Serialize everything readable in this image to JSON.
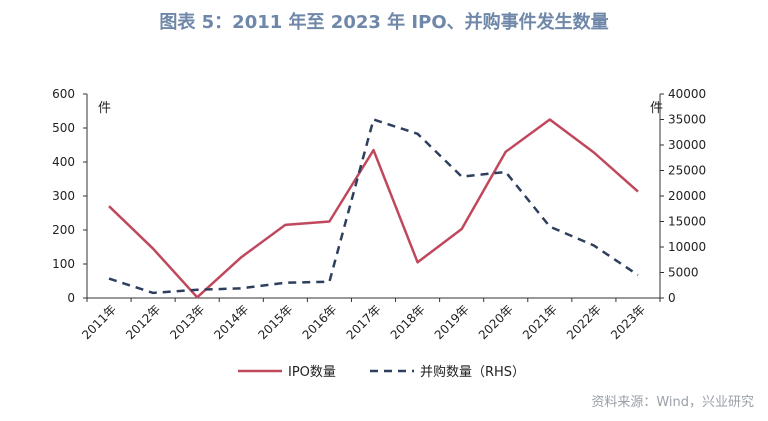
{
  "title": "图表 5：2011 年至 2023 年 IPO、并购事件发生数量",
  "source": "资料来源：Wind，兴业研究",
  "chart_data": {
    "type": "line",
    "categories": [
      "2011年",
      "2012年",
      "2013年",
      "2014年",
      "2015年",
      "2016年",
      "2017年",
      "2018年",
      "2019年",
      "2020年",
      "2021年",
      "2022年",
      "2023年"
    ],
    "y_left": {
      "unit": "件",
      "range": [
        0,
        600
      ],
      "ticks": [
        0,
        100,
        200,
        300,
        400,
        500,
        600
      ]
    },
    "y_right": {
      "unit": "件",
      "range": [
        0,
        40000
      ],
      "ticks": [
        0,
        5000,
        10000,
        15000,
        20000,
        25000,
        30000,
        35000,
        40000
      ]
    },
    "series": [
      {
        "name": "IPO数量",
        "axis": "left",
        "style": "solid",
        "color": "#c0485c",
        "values": [
          270,
          145,
          2,
          120,
          215,
          225,
          435,
          105,
          203,
          430,
          525,
          428,
          313
        ]
      },
      {
        "name": "并购数量（RHS）",
        "axis": "right",
        "style": "dashed",
        "color": "#2e3f5e",
        "values": [
          3800,
          1000,
          1600,
          1900,
          3000,
          3200,
          35000,
          32200,
          23800,
          24700,
          14000,
          10300,
          4500
        ]
      }
    ],
    "legend_position": "bottom",
    "grid": false
  }
}
